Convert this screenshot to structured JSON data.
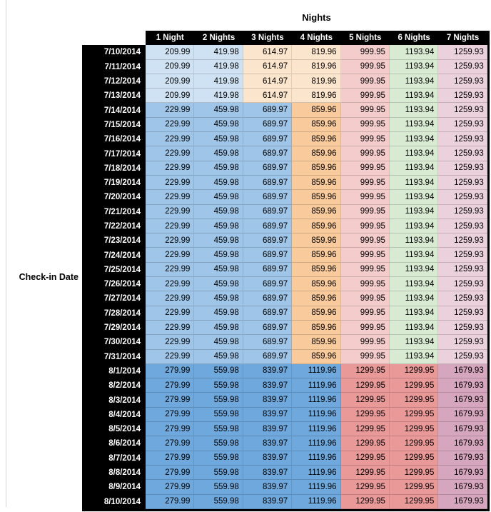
{
  "chart_data": {
    "type": "table",
    "title": "Nights",
    "row_header_label": "Check-in Date",
    "columns": [
      "1 Night",
      "2 Nights",
      "3 Nights",
      "4 Nights",
      "5 Nights",
      "6 Nights",
      "7 Nights"
    ],
    "header_bg": "#000000",
    "header_fg": "#ffffff",
    "sections": [
      {
        "dates": [
          "7/10/2014",
          "7/11/2014",
          "7/12/2014",
          "7/13/2014"
        ],
        "values": [
          "209.99",
          "419.98",
          "614.97",
          "819.96",
          "999.95",
          "1193.94",
          "1259.93"
        ],
        "cell_colors": [
          "#cfe2f3",
          "#cfe2f3",
          "#fce5cd",
          "#fce5cd",
          "#f4cccc",
          "#d9ead3",
          "#ead1dc"
        ]
      },
      {
        "dates": [
          "7/14/2014",
          "7/15/2014",
          "7/16/2014",
          "7/17/2014",
          "7/18/2014",
          "7/19/2014",
          "7/20/2014",
          "7/21/2014",
          "7/22/2014",
          "7/23/2014",
          "7/24/2014",
          "7/25/2014",
          "7/26/2014",
          "7/27/2014",
          "7/28/2014",
          "7/29/2014",
          "7/30/2014",
          "7/31/2014"
        ],
        "values": [
          "229.99",
          "459.98",
          "689.97",
          "859.96",
          "999.95",
          "1193.94",
          "1259.93"
        ],
        "cell_colors": [
          "#9fc5e8",
          "#9fc5e8",
          "#9fc5e8",
          "#f9cb9c",
          "#f4cccc",
          "#d9ead3",
          "#ead1dc"
        ]
      },
      {
        "dates": [
          "8/1/2014",
          "8/2/2014",
          "8/3/2014",
          "8/4/2014",
          "8/5/2014",
          "8/6/2014",
          "8/7/2014",
          "8/8/2014",
          "8/9/2014",
          "8/10/2014"
        ],
        "values": [
          "279.99",
          "559.98",
          "839.97",
          "1119.96",
          "1299.95",
          "1299.95",
          "1679.93"
        ],
        "cell_colors": [
          "#6fa8dc",
          "#6fa8dc",
          "#6fa8dc",
          "#6fa8dc",
          "#ea9999",
          "#ea9999",
          "#d5a6bd"
        ]
      }
    ]
  }
}
